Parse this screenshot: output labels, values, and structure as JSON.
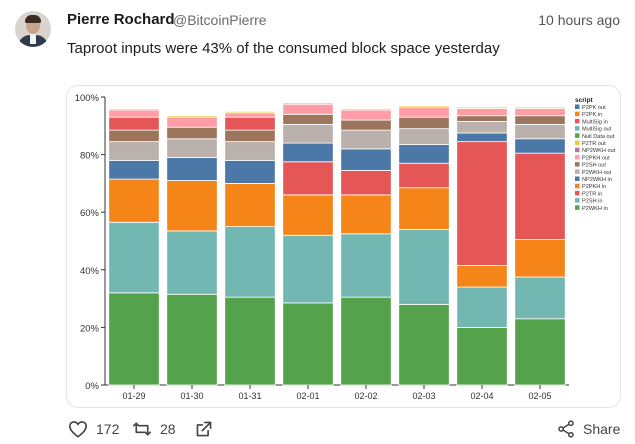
{
  "tweet": {
    "author_name": "Pierre Rochard",
    "author_handle": "@BitcoinPierre",
    "timestamp": "10 hours ago",
    "text": "Taproot inputs were 43% of the consumed block space yesterday"
  },
  "actions": {
    "likes": "172",
    "retweets": "28",
    "share_label": "Share"
  },
  "icons": [
    "heart-icon",
    "retweet-icon",
    "external-link-icon",
    "share-icon"
  ],
  "chart_data": {
    "type": "bar",
    "stacked": true,
    "title": "",
    "xlabel": "",
    "ylabel": "",
    "ylim": [
      0,
      100
    ],
    "ytick_labels": [
      "0%",
      "20%",
      "40%",
      "60%",
      "80%",
      "100%"
    ],
    "categories": [
      "01-29",
      "01-30",
      "01-31",
      "02-01",
      "02-02",
      "02-03",
      "02-04",
      "02-05"
    ],
    "legend_title": "script",
    "legend_position": "right",
    "legend": [
      {
        "name": "P2PK out",
        "color": "#4c78a8"
      },
      {
        "name": "P2PK in",
        "color": "#f58518"
      },
      {
        "name": "MultiSig in",
        "color": "#e45756"
      },
      {
        "name": "MultiSig out",
        "color": "#72b7b2"
      },
      {
        "name": "Null Data out",
        "color": "#54a24b"
      },
      {
        "name": "P2TR out",
        "color": "#eeca3b"
      },
      {
        "name": "NP2WKH out",
        "color": "#b279a2"
      },
      {
        "name": "P2PKH out",
        "color": "#ff9da6"
      },
      {
        "name": "P2SH out",
        "color": "#9d755d"
      },
      {
        "name": "P2WKH out",
        "color": "#bab0ac"
      },
      {
        "name": "NP2WKH in",
        "color": "#4c78a8"
      },
      {
        "name": "P2PKH in",
        "color": "#f58518"
      },
      {
        "name": "P2TR in",
        "color": "#e45756"
      },
      {
        "name": "P2SH in",
        "color": "#72b7b2"
      },
      {
        "name": "P2WKH in",
        "color": "#54a24b"
      }
    ],
    "segments_bottom_to_top": [
      {
        "name": "P2WKH in",
        "color": "#54a24b",
        "values": [
          32,
          31.5,
          30.5,
          28.5,
          30.5,
          28,
          20,
          23
        ]
      },
      {
        "name": "P2SH in",
        "color": "#72b7b2",
        "values": [
          24.5,
          22,
          24.5,
          23.5,
          22,
          26,
          14,
          14.5
        ]
      },
      {
        "name": "P2PKH in",
        "color": "#f58518",
        "values": [
          15,
          17.5,
          15,
          14,
          13.5,
          14.5,
          7.5,
          13
        ]
      },
      {
        "name": "P2TR in",
        "color": "#e45756",
        "values": [
          0,
          0,
          0,
          11.5,
          8.5,
          8.5,
          43,
          30
        ]
      },
      {
        "name": "NP2WKH in",
        "color": "#4c78a8",
        "values": [
          6.5,
          8,
          8,
          6.5,
          7.5,
          6.5,
          3,
          5
        ]
      },
      {
        "name": "P2WKH out",
        "color": "#bab0ac",
        "values": [
          6.5,
          6.5,
          6.5,
          6.5,
          6.5,
          5.5,
          4,
          5
        ]
      },
      {
        "name": "P2SH out",
        "color": "#9d755d",
        "values": [
          4,
          4,
          4,
          3.5,
          3.5,
          4,
          2,
          3
        ]
      },
      {
        "name": "MultiSig in",
        "color": "#e45756",
        "values": [
          4.5,
          0,
          4.5,
          0,
          0,
          0,
          0,
          0
        ]
      },
      {
        "name": "P2PKH out",
        "color": "#ff9da6",
        "values": [
          2.5,
          3.5,
          1.5,
          3.5,
          3.5,
          3.5,
          2.5,
          2.5
        ]
      },
      {
        "name": "P2TR out",
        "color": "#eeca3b",
        "values": [
          0.5,
          0.5,
          0.5,
          0.5,
          0.5,
          0.5,
          0.5,
          0.5
        ]
      }
    ]
  }
}
